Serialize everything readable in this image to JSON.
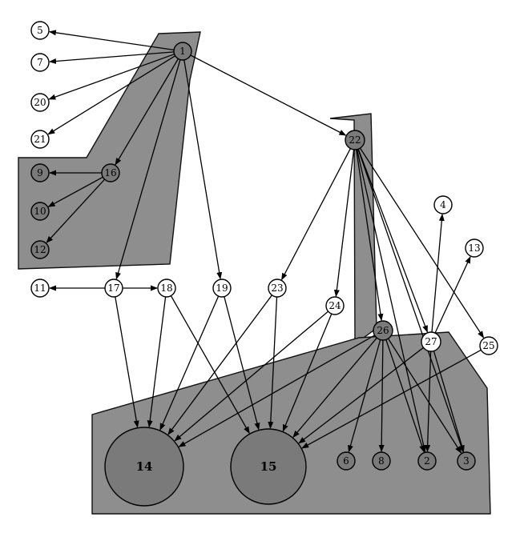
{
  "nodes": [
    {
      "id": "1",
      "label": "1",
      "shaded": true
    },
    {
      "id": "5",
      "label": "5",
      "shaded": false
    },
    {
      "id": "7",
      "label": "7",
      "shaded": false
    },
    {
      "id": "20",
      "label": "20",
      "shaded": false
    },
    {
      "id": "21",
      "label": "21",
      "shaded": false
    },
    {
      "id": "16",
      "label": "16",
      "shaded": true
    },
    {
      "id": "9",
      "label": "9",
      "shaded": true
    },
    {
      "id": "10",
      "label": "10",
      "shaded": true
    },
    {
      "id": "12",
      "label": "12",
      "shaded": true
    },
    {
      "id": "11",
      "label": "11",
      "shaded": false
    },
    {
      "id": "17",
      "label": "17",
      "shaded": false
    },
    {
      "id": "18",
      "label": "18",
      "shaded": false
    },
    {
      "id": "19",
      "label": "19",
      "shaded": false
    },
    {
      "id": "23",
      "label": "23",
      "shaded": false
    },
    {
      "id": "22",
      "label": "22",
      "shaded": true
    },
    {
      "id": "4",
      "label": "4",
      "shaded": false
    },
    {
      "id": "13",
      "label": "13",
      "shaded": false
    },
    {
      "id": "24",
      "label": "24",
      "shaded": false
    },
    {
      "id": "26",
      "label": "26",
      "shaded": true
    },
    {
      "id": "27",
      "label": "27",
      "shaded": false
    },
    {
      "id": "25",
      "label": "25",
      "shaded": false
    },
    {
      "id": "14",
      "label": "14",
      "shaded": true
    },
    {
      "id": "15",
      "label": "15",
      "shaded": true
    },
    {
      "id": "6",
      "label": "6",
      "shaded": true
    },
    {
      "id": "8",
      "label": "8",
      "shaded": true
    },
    {
      "id": "2",
      "label": "2",
      "shaded": true
    },
    {
      "id": "3",
      "label": "3",
      "shaded": true
    }
  ],
  "edges": [
    [
      "1",
      "5"
    ],
    [
      "1",
      "7"
    ],
    [
      "1",
      "20"
    ],
    [
      "1",
      "21"
    ],
    [
      "1",
      "16"
    ],
    [
      "1",
      "17"
    ],
    [
      "1",
      "19"
    ],
    [
      "1",
      "22"
    ],
    [
      "16",
      "9"
    ],
    [
      "16",
      "10"
    ],
    [
      "16",
      "12"
    ],
    [
      "17",
      "11"
    ],
    [
      "17",
      "18"
    ],
    [
      "17",
      "14"
    ],
    [
      "18",
      "14"
    ],
    [
      "18",
      "15"
    ],
    [
      "19",
      "14"
    ],
    [
      "19",
      "15"
    ],
    [
      "23",
      "14"
    ],
    [
      "23",
      "15"
    ],
    [
      "24",
      "14"
    ],
    [
      "24",
      "15"
    ],
    [
      "22",
      "23"
    ],
    [
      "22",
      "24"
    ],
    [
      "22",
      "26"
    ],
    [
      "22",
      "27"
    ],
    [
      "22",
      "25"
    ],
    [
      "22",
      "2"
    ],
    [
      "22",
      "3"
    ],
    [
      "26",
      "14"
    ],
    [
      "26",
      "15"
    ],
    [
      "26",
      "6"
    ],
    [
      "26",
      "8"
    ],
    [
      "26",
      "2"
    ],
    [
      "26",
      "3"
    ],
    [
      "27",
      "4"
    ],
    [
      "27",
      "13"
    ],
    [
      "27",
      "15"
    ],
    [
      "27",
      "2"
    ],
    [
      "27",
      "3"
    ],
    [
      "25",
      "15"
    ]
  ]
}
